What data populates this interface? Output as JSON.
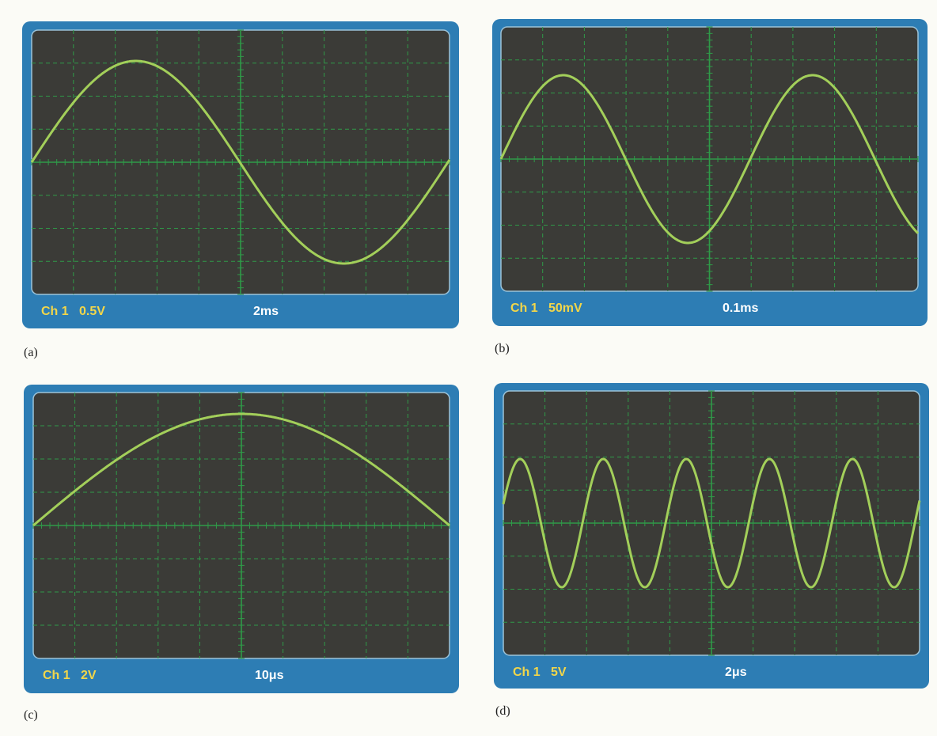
{
  "panels": [
    {
      "label": "(a)",
      "channel": "Ch 1",
      "volts": "0.5V",
      "time": "2ms"
    },
    {
      "label": "(b)",
      "channel": "Ch 1",
      "volts": "50mV",
      "time": "0.1ms"
    },
    {
      "label": "(c)",
      "channel": "Ch 1",
      "volts": "2V",
      "time": "10μs"
    },
    {
      "label": "(d)",
      "channel": "Ch 1",
      "volts": "5V",
      "time": "2μs"
    }
  ]
}
